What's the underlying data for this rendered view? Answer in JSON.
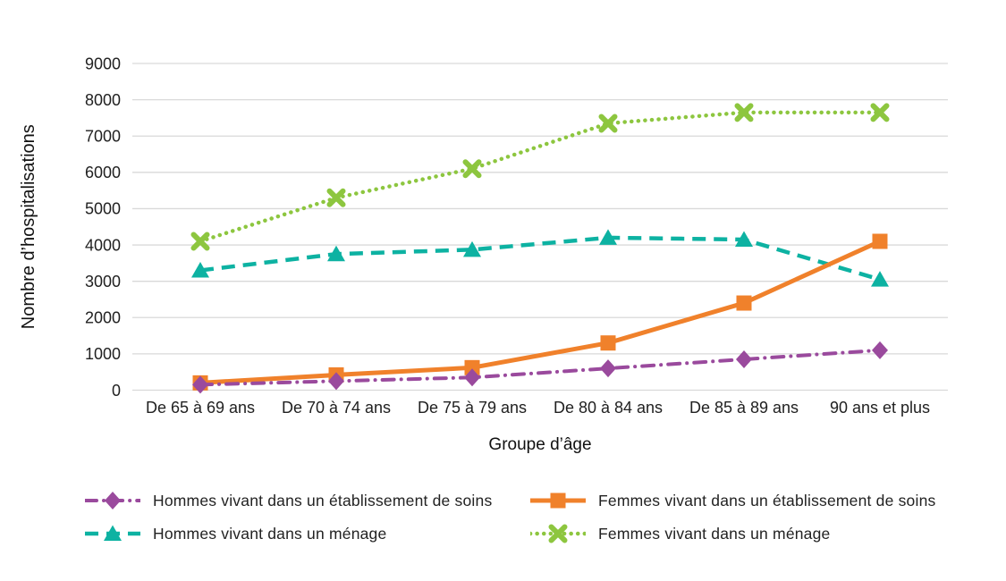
{
  "chart_data": {
    "type": "line",
    "title": "",
    "xlabel": "Groupe d’âge",
    "ylabel": "Nombre d’hospitalisations",
    "categories": [
      "De 65 à 69 ans",
      "De 70 à 74 ans",
      "De 75 à 79 ans",
      "De 80 à 84 ans",
      "De 85 à 89 ans",
      "90 ans et plus"
    ],
    "series": [
      {
        "name": "Hommes vivant dans un établissement de soins",
        "values": [
          150,
          250,
          350,
          600,
          850,
          1100
        ],
        "color": "#9a4a9d",
        "marker": "diamond",
        "line_style": "dash-dot",
        "line_width": 4
      },
      {
        "name": "Femmes vivant dans un établissement de soins",
        "values": [
          200,
          420,
          620,
          1300,
          2400,
          4100
        ],
        "color": "#f0812b",
        "marker": "square",
        "line_style": "solid",
        "line_width": 5
      },
      {
        "name": "Hommes vivant dans un ménage",
        "values": [
          3300,
          3750,
          3870,
          4200,
          4150,
          3050
        ],
        "color": "#0db2a2",
        "marker": "triangle",
        "line_style": "dashed",
        "line_width": 4.5
      },
      {
        "name": "Femmes vivant dans un ménage",
        "values": [
          4100,
          5300,
          6100,
          7350,
          7650,
          7650
        ],
        "color": "#8dc63f",
        "marker": "x",
        "line_style": "dotted",
        "line_width": 4.5
      }
    ],
    "ylim": [
      0,
      9000
    ],
    "ytick_step": 1000,
    "yticks": [
      "0",
      "1000",
      "2000",
      "3000",
      "4000",
      "5000",
      "6000",
      "7000",
      "8000",
      "9000"
    ],
    "grid": "horizontal",
    "legend_position": "bottom"
  },
  "colors": {
    "grid": "#d9d9d9",
    "text": "#212121",
    "background": "#ffffff"
  }
}
